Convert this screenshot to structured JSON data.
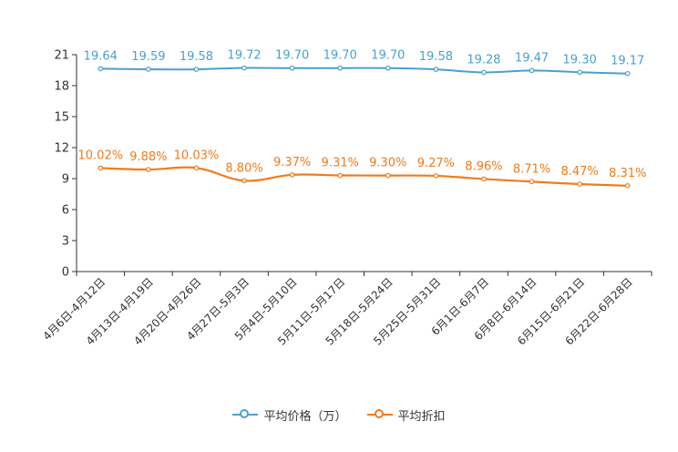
{
  "chart_data": {
    "type": "line",
    "categories": [
      "4月6日-4月12日",
      "4月13日-4月19日",
      "4月20日-4月26日",
      "4月27日-5月3日",
      "5月4日-5月10日",
      "5月11日-5月17日",
      "5月18日-5月24日",
      "5月25日-5月31日",
      "6月1日-6月7日",
      "6月8日-6月14日",
      "6月15日-6月21日",
      "6月22日-6月28日"
    ],
    "series": [
      {
        "name": "平均价格（万）",
        "color": "#4aa0d0",
        "values": [
          19.64,
          19.59,
          19.58,
          19.72,
          19.7,
          19.7,
          19.7,
          19.58,
          19.28,
          19.47,
          19.3,
          19.17
        ],
        "labels": [
          "19.64",
          "19.59",
          "19.58",
          "19.72",
          "19.70",
          "19.70",
          "19.70",
          "19.58",
          "19.28",
          "19.47",
          "19.30",
          "19.17"
        ]
      },
      {
        "name": "平均折扣",
        "color": "#f27a1a",
        "values": [
          10.02,
          9.88,
          10.03,
          8.8,
          9.37,
          9.31,
          9.3,
          9.27,
          8.96,
          8.71,
          8.47,
          8.31
        ],
        "labels": [
          "10.02%",
          "9.88%",
          "10.03%",
          "8.80%",
          "9.37%",
          "9.31%",
          "9.30%",
          "9.27%",
          "8.96%",
          "8.71%",
          "8.47%",
          "8.31%"
        ]
      }
    ],
    "yticks": [
      0,
      3,
      6,
      9,
      12,
      15,
      18,
      21
    ],
    "ylim": [
      0,
      21
    ],
    "title": "",
    "xlabel": "",
    "ylabel": "",
    "legend_position": "bottom-center"
  }
}
